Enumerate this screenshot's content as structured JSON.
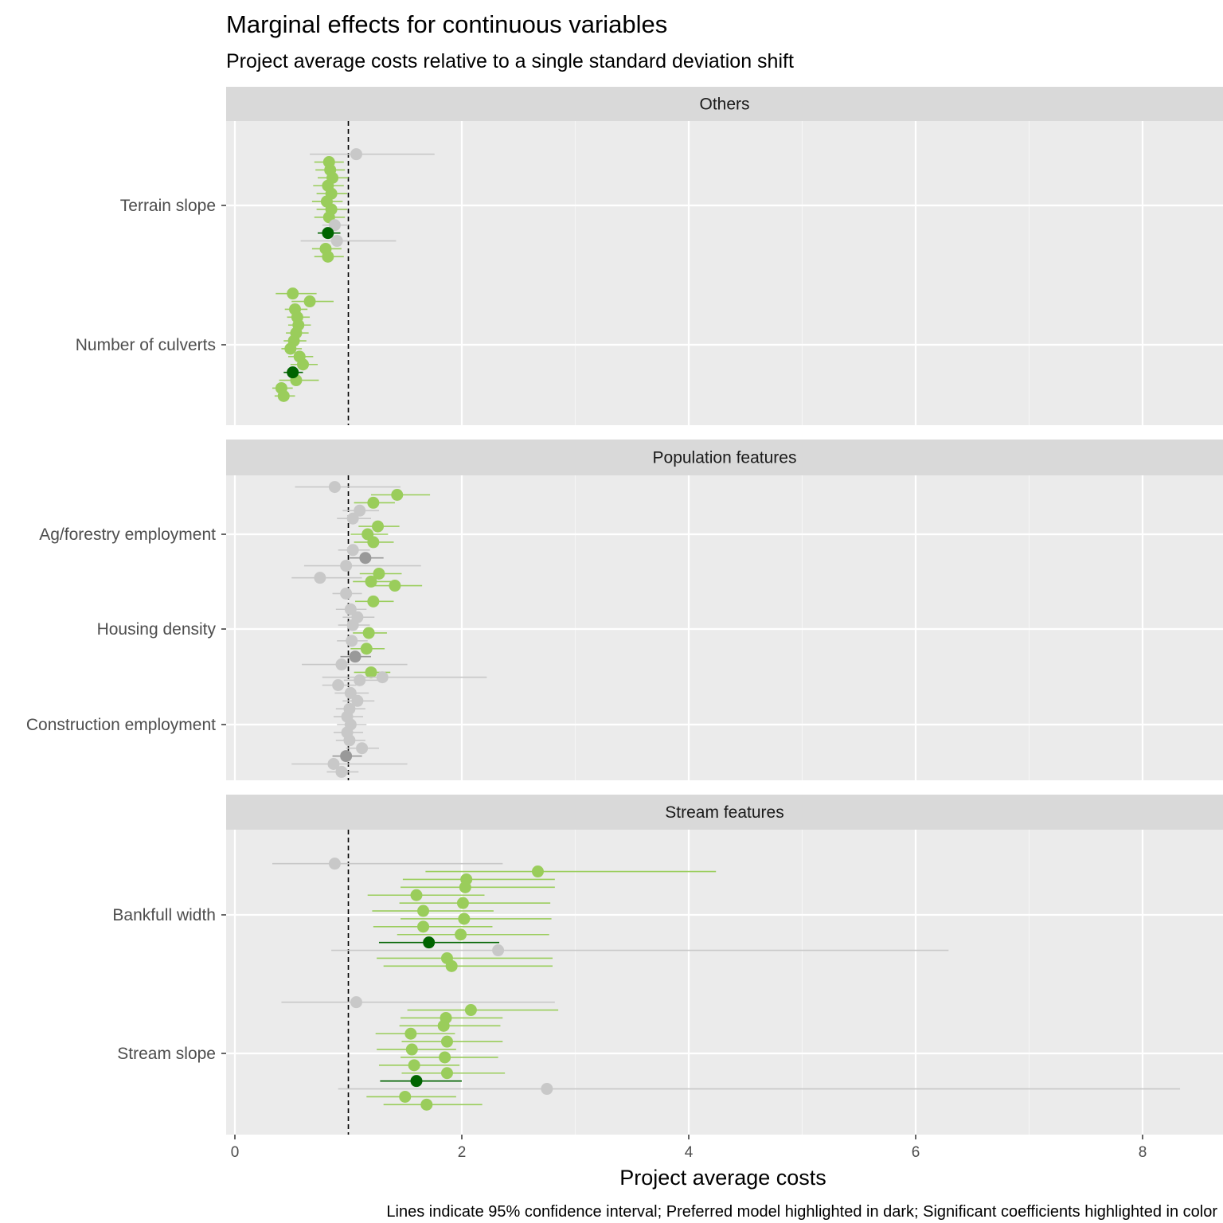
{
  "chart_data": {
    "type": "scatter",
    "title": "Marginal effects for continuous variables",
    "subtitle": "Project average costs relative to a single standard deviation shift",
    "xlabel": "Project average costs",
    "caption": "Lines indicate 95% confidence interval; Preferred model highlighted in dark; Significant coefficients highlighted in color",
    "xlim": [
      -0.1,
      8.8
    ],
    "x_ticks": [
      "0",
      "2",
      "4",
      "6",
      "8"
    ],
    "reference_line": 1,
    "grid": true,
    "colors": {
      "sig": "#9ACD5B",
      "sig_preferred": "#006400",
      "nonsig": "#C8C8C8",
      "nonsig_preferred": "#999999",
      "panel_bg": "#EBEBEB",
      "strip_bg": "#D9D9D9"
    },
    "panels": [
      {
        "name": "Others",
        "variables": [
          {
            "label": "Terrain slope",
            "points": [
              {
                "x": 1.07,
                "lo": 0.66,
                "hi": 1.76,
                "sig": false,
                "pref": false
              },
              {
                "x": 0.83,
                "lo": 0.7,
                "hi": 0.96,
                "sig": true,
                "pref": false
              },
              {
                "x": 0.84,
                "lo": 0.71,
                "hi": 0.97,
                "sig": true,
                "pref": false
              },
              {
                "x": 0.86,
                "lo": 0.73,
                "hi": 1.0,
                "sig": true,
                "pref": false
              },
              {
                "x": 0.82,
                "lo": 0.69,
                "hi": 0.96,
                "sig": true,
                "pref": false
              },
              {
                "x": 0.85,
                "lo": 0.72,
                "hi": 0.99,
                "sig": true,
                "pref": false
              },
              {
                "x": 0.81,
                "lo": 0.68,
                "hi": 0.95,
                "sig": true,
                "pref": false
              },
              {
                "x": 0.85,
                "lo": 0.72,
                "hi": 0.99,
                "sig": true,
                "pref": false
              },
              {
                "x": 0.83,
                "lo": 0.7,
                "hi": 0.97,
                "sig": true,
                "pref": false
              },
              {
                "x": 0.88,
                "lo": 0.77,
                "hi": 1.0,
                "sig": false,
                "pref": false
              },
              {
                "x": 0.82,
                "lo": 0.73,
                "hi": 0.93,
                "sig": true,
                "pref": true
              },
              {
                "x": 0.9,
                "lo": 0.58,
                "hi": 1.42,
                "sig": false,
                "pref": false
              },
              {
                "x": 0.8,
                "lo": 0.68,
                "hi": 0.94,
                "sig": true,
                "pref": false
              },
              {
                "x": 0.82,
                "lo": 0.7,
                "hi": 0.96,
                "sig": true,
                "pref": false
              }
            ]
          },
          {
            "label": "Number of culverts",
            "points": [
              {
                "x": 0.51,
                "lo": 0.36,
                "hi": 0.72,
                "sig": true,
                "pref": false
              },
              {
                "x": 0.66,
                "lo": 0.5,
                "hi": 0.87,
                "sig": true,
                "pref": false
              },
              {
                "x": 0.53,
                "lo": 0.44,
                "hi": 0.64,
                "sig": true,
                "pref": false
              },
              {
                "x": 0.55,
                "lo": 0.46,
                "hi": 0.66,
                "sig": true,
                "pref": false
              },
              {
                "x": 0.56,
                "lo": 0.47,
                "hi": 0.67,
                "sig": true,
                "pref": false
              },
              {
                "x": 0.54,
                "lo": 0.45,
                "hi": 0.65,
                "sig": true,
                "pref": false
              },
              {
                "x": 0.52,
                "lo": 0.43,
                "hi": 0.63,
                "sig": true,
                "pref": false
              },
              {
                "x": 0.49,
                "lo": 0.41,
                "hi": 0.59,
                "sig": true,
                "pref": false
              },
              {
                "x": 0.57,
                "lo": 0.47,
                "hi": 0.69,
                "sig": true,
                "pref": false
              },
              {
                "x": 0.6,
                "lo": 0.49,
                "hi": 0.73,
                "sig": true,
                "pref": false
              },
              {
                "x": 0.51,
                "lo": 0.43,
                "hi": 0.6,
                "sig": true,
                "pref": true
              },
              {
                "x": 0.54,
                "lo": 0.39,
                "hi": 0.74,
                "sig": true,
                "pref": false
              },
              {
                "x": 0.41,
                "lo": 0.33,
                "hi": 0.51,
                "sig": true,
                "pref": false
              },
              {
                "x": 0.43,
                "lo": 0.35,
                "hi": 0.53,
                "sig": true,
                "pref": false
              }
            ]
          }
        ]
      },
      {
        "name": "Population features",
        "variables": [
          {
            "label": "Ag/forestry employment",
            "points": [
              {
                "x": 0.88,
                "lo": 0.53,
                "hi": 1.46,
                "sig": false,
                "pref": false
              },
              {
                "x": 1.43,
                "lo": 1.2,
                "hi": 1.72,
                "sig": true,
                "pref": false
              },
              {
                "x": 1.22,
                "lo": 1.05,
                "hi": 1.41,
                "sig": true,
                "pref": false
              },
              {
                "x": 1.1,
                "lo": 0.95,
                "hi": 1.27,
                "sig": false,
                "pref": false
              },
              {
                "x": 1.04,
                "lo": 0.9,
                "hi": 1.2,
                "sig": false,
                "pref": false
              },
              {
                "x": 1.26,
                "lo": 1.09,
                "hi": 1.45,
                "sig": true,
                "pref": false
              },
              {
                "x": 1.17,
                "lo": 1.02,
                "hi": 1.35,
                "sig": true,
                "pref": false
              },
              {
                "x": 1.22,
                "lo": 1.05,
                "hi": 1.4,
                "sig": true,
                "pref": false
              },
              {
                "x": 1.04,
                "lo": 0.91,
                "hi": 1.19,
                "sig": false,
                "pref": false
              },
              {
                "x": 1.15,
                "lo": 1.01,
                "hi": 1.31,
                "sig": false,
                "pref": true
              },
              {
                "x": 0.98,
                "lo": 0.61,
                "hi": 1.64,
                "sig": false,
                "pref": false
              },
              {
                "x": 1.27,
                "lo": 1.1,
                "hi": 1.47,
                "sig": true,
                "pref": false
              },
              {
                "x": 1.2,
                "lo": 1.04,
                "hi": 1.39,
                "sig": true,
                "pref": false
              }
            ]
          },
          {
            "label": "Housing density",
            "points": [
              {
                "x": 0.75,
                "lo": 0.5,
                "hi": 1.12,
                "sig": false,
                "pref": false
              },
              {
                "x": 1.41,
                "lo": 1.21,
                "hi": 1.65,
                "sig": true,
                "pref": false
              },
              {
                "x": 0.98,
                "lo": 0.86,
                "hi": 1.12,
                "sig": false,
                "pref": false
              },
              {
                "x": 1.22,
                "lo": 1.06,
                "hi": 1.4,
                "sig": true,
                "pref": false
              },
              {
                "x": 1.02,
                "lo": 0.89,
                "hi": 1.16,
                "sig": false,
                "pref": false
              },
              {
                "x": 1.08,
                "lo": 0.95,
                "hi": 1.23,
                "sig": false,
                "pref": false
              },
              {
                "x": 1.04,
                "lo": 0.91,
                "hi": 1.19,
                "sig": false,
                "pref": false
              },
              {
                "x": 1.18,
                "lo": 1.04,
                "hi": 1.34,
                "sig": true,
                "pref": false
              },
              {
                "x": 1.03,
                "lo": 0.9,
                "hi": 1.17,
                "sig": false,
                "pref": false
              },
              {
                "x": 1.16,
                "lo": 1.02,
                "hi": 1.32,
                "sig": true,
                "pref": false
              },
              {
                "x": 1.06,
                "lo": 0.93,
                "hi": 1.2,
                "sig": false,
                "pref": true
              },
              {
                "x": 0.94,
                "lo": 0.59,
                "hi": 1.52,
                "sig": false,
                "pref": false
              },
              {
                "x": 1.2,
                "lo": 1.05,
                "hi": 1.37,
                "sig": true,
                "pref": false
              },
              {
                "x": 1.1,
                "lo": 0.96,
                "hi": 1.26,
                "sig": false,
                "pref": false
              }
            ]
          },
          {
            "label": "Construction employment",
            "points": [
              {
                "x": 1.3,
                "lo": 0.77,
                "hi": 2.22,
                "sig": false,
                "pref": false
              },
              {
                "x": 0.91,
                "lo": 0.77,
                "hi": 1.07,
                "sig": false,
                "pref": false
              },
              {
                "x": 1.02,
                "lo": 0.88,
                "hi": 1.18,
                "sig": false,
                "pref": false
              },
              {
                "x": 1.08,
                "lo": 0.95,
                "hi": 1.23,
                "sig": false,
                "pref": false
              },
              {
                "x": 1.01,
                "lo": 0.89,
                "hi": 1.15,
                "sig": false,
                "pref": false
              },
              {
                "x": 0.99,
                "lo": 0.87,
                "hi": 1.13,
                "sig": false,
                "pref": false
              },
              {
                "x": 1.02,
                "lo": 0.9,
                "hi": 1.16,
                "sig": false,
                "pref": false
              },
              {
                "x": 0.99,
                "lo": 0.87,
                "hi": 1.13,
                "sig": false,
                "pref": false
              },
              {
                "x": 1.01,
                "lo": 0.89,
                "hi": 1.15,
                "sig": false,
                "pref": false
              },
              {
                "x": 1.12,
                "lo": 0.98,
                "hi": 1.27,
                "sig": false,
                "pref": false
              },
              {
                "x": 0.98,
                "lo": 0.86,
                "hi": 1.12,
                "sig": false,
                "pref": true
              },
              {
                "x": 0.87,
                "lo": 0.5,
                "hi": 1.52,
                "sig": false,
                "pref": false
              },
              {
                "x": 0.94,
                "lo": 0.81,
                "hi": 1.09,
                "sig": false,
                "pref": false
              }
            ]
          }
        ]
      },
      {
        "name": "Stream features",
        "variables": [
          {
            "label": "Bankfull width",
            "points": [
              {
                "x": 0.88,
                "lo": 0.33,
                "hi": 2.36,
                "sig": false,
                "pref": false
              },
              {
                "x": 2.67,
                "lo": 1.68,
                "hi": 4.24,
                "sig": true,
                "pref": false
              },
              {
                "x": 2.04,
                "lo": 1.48,
                "hi": 2.82,
                "sig": true,
                "pref": false
              },
              {
                "x": 2.03,
                "lo": 1.46,
                "hi": 2.82,
                "sig": true,
                "pref": false
              },
              {
                "x": 1.6,
                "lo": 1.17,
                "hi": 2.2,
                "sig": true,
                "pref": false
              },
              {
                "x": 2.01,
                "lo": 1.45,
                "hi": 2.78,
                "sig": true,
                "pref": false
              },
              {
                "x": 1.66,
                "lo": 1.21,
                "hi": 2.28,
                "sig": true,
                "pref": false
              },
              {
                "x": 2.02,
                "lo": 1.46,
                "hi": 2.79,
                "sig": true,
                "pref": false
              },
              {
                "x": 1.66,
                "lo": 1.22,
                "hi": 2.27,
                "sig": true,
                "pref": false
              },
              {
                "x": 1.99,
                "lo": 1.43,
                "hi": 2.77,
                "sig": true,
                "pref": false
              },
              {
                "x": 1.71,
                "lo": 1.27,
                "hi": 2.33,
                "sig": true,
                "pref": true
              },
              {
                "x": 2.32,
                "lo": 0.85,
                "hi": 6.29,
                "sig": false,
                "pref": false
              },
              {
                "x": 1.87,
                "lo": 1.25,
                "hi": 2.8,
                "sig": true,
                "pref": false
              },
              {
                "x": 1.91,
                "lo": 1.31,
                "hi": 2.8,
                "sig": true,
                "pref": false
              }
            ]
          },
          {
            "label": "Stream slope",
            "points": [
              {
                "x": 1.07,
                "lo": 0.41,
                "hi": 2.82,
                "sig": false,
                "pref": false
              },
              {
                "x": 2.08,
                "lo": 1.52,
                "hi": 2.85,
                "sig": true,
                "pref": false
              },
              {
                "x": 1.86,
                "lo": 1.46,
                "hi": 2.36,
                "sig": true,
                "pref": false
              },
              {
                "x": 1.84,
                "lo": 1.45,
                "hi": 2.34,
                "sig": true,
                "pref": false
              },
              {
                "x": 1.55,
                "lo": 1.24,
                "hi": 1.94,
                "sig": true,
                "pref": false
              },
              {
                "x": 1.87,
                "lo": 1.47,
                "hi": 2.36,
                "sig": true,
                "pref": false
              },
              {
                "x": 1.56,
                "lo": 1.25,
                "hi": 1.95,
                "sig": true,
                "pref": false
              },
              {
                "x": 1.85,
                "lo": 1.46,
                "hi": 2.32,
                "sig": true,
                "pref": false
              },
              {
                "x": 1.58,
                "lo": 1.27,
                "hi": 1.98,
                "sig": true,
                "pref": false
              },
              {
                "x": 1.87,
                "lo": 1.47,
                "hi": 2.38,
                "sig": true,
                "pref": false
              },
              {
                "x": 1.6,
                "lo": 1.28,
                "hi": 2.0,
                "sig": true,
                "pref": true
              },
              {
                "x": 2.75,
                "lo": 0.91,
                "hi": 8.33,
                "sig": false,
                "pref": false
              },
              {
                "x": 1.5,
                "lo": 1.16,
                "hi": 1.95,
                "sig": true,
                "pref": false
              },
              {
                "x": 1.69,
                "lo": 1.31,
                "hi": 2.18,
                "sig": true,
                "pref": false
              }
            ]
          }
        ]
      }
    ]
  }
}
